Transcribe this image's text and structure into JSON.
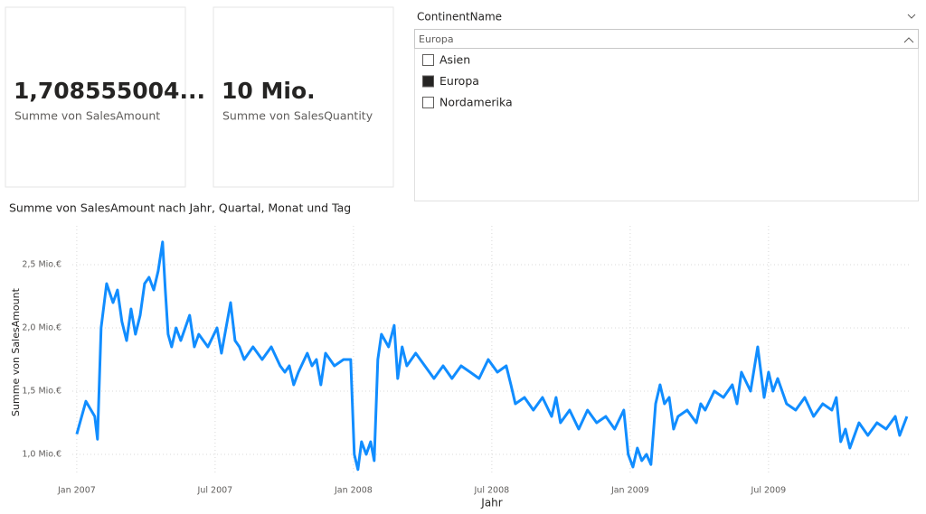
{
  "cards": [
    {
      "value": "1,708555004...",
      "label": "Summe von SalesAmount"
    },
    {
      "value": "10 Mio.",
      "label": "Summe von SalesQuantity"
    }
  ],
  "slicer": {
    "title": "ContinentName",
    "search": "Europa",
    "items": [
      {
        "label": "Asien",
        "checked": false
      },
      {
        "label": "Europa",
        "checked": true
      },
      {
        "label": "Nordamerika",
        "checked": false
      }
    ]
  },
  "chart_data": {
    "type": "line",
    "title": "Summe von SalesAmount nach Jahr, Quartal, Monat und Tag",
    "x_label": "Jahr",
    "y_label": "Summe von SalesAmount",
    "x": [
      2007.0,
      2007.033,
      2007.065,
      2007.075,
      2007.088,
      2007.108,
      2007.131,
      2007.147,
      2007.163,
      2007.18,
      2007.196,
      2007.212,
      2007.229,
      2007.245,
      2007.261,
      2007.278,
      2007.294,
      2007.31,
      2007.32,
      2007.33,
      2007.343,
      2007.359,
      2007.376,
      2007.408,
      2007.425,
      2007.441,
      2007.474,
      2007.507,
      2007.523,
      2007.556,
      2007.572,
      2007.588,
      2007.605,
      2007.637,
      2007.67,
      2007.703,
      2007.735,
      2007.752,
      2007.768,
      2007.784,
      2007.801,
      2007.833,
      2007.85,
      2007.866,
      2007.882,
      2007.899,
      2007.931,
      2007.964,
      2007.99,
      2008.003,
      2008.016,
      2008.029,
      2008.046,
      2008.062,
      2008.075,
      2008.088,
      2008.101,
      2008.127,
      2008.147,
      2008.16,
      2008.176,
      2008.193,
      2008.225,
      2008.258,
      2008.291,
      2008.324,
      2008.356,
      2008.389,
      2008.422,
      2008.454,
      2008.487,
      2008.52,
      2008.552,
      2008.569,
      2008.585,
      2008.618,
      2008.65,
      2008.683,
      2008.716,
      2008.732,
      2008.748,
      2008.781,
      2008.814,
      2008.846,
      2008.879,
      2008.912,
      2008.944,
      2008.977,
      2008.993,
      2009.01,
      2009.026,
      2009.042,
      2009.059,
      2009.075,
      2009.092,
      2009.108,
      2009.124,
      2009.141,
      2009.157,
      2009.173,
      2009.206,
      2009.239,
      2009.255,
      2009.271,
      2009.304,
      2009.337,
      2009.369,
      2009.386,
      2009.402,
      2009.435,
      2009.461,
      2009.484,
      2009.5,
      2009.516,
      2009.533,
      2009.565,
      2009.598,
      2009.631,
      2009.663,
      2009.696,
      2009.729,
      2009.745,
      2009.761,
      2009.778,
      2009.794,
      2009.827,
      2009.859,
      2009.892,
      2009.925,
      2009.958,
      2009.974,
      2010.0
    ],
    "series": [
      {
        "color": "#118dff",
        "values": [
          1160000,
          1420000,
          1300000,
          1120000,
          2000000,
          2350000,
          2200000,
          2300000,
          2050000,
          1900000,
          2150000,
          1950000,
          2100000,
          2350000,
          2400000,
          2300000,
          2450000,
          2680000,
          2300000,
          1950000,
          1850000,
          2000000,
          1900000,
          2100000,
          1850000,
          1950000,
          1850000,
          2000000,
          1800000,
          2200000,
          1900000,
          1850000,
          1750000,
          1850000,
          1750000,
          1850000,
          1700000,
          1650000,
          1700000,
          1550000,
          1650000,
          1800000,
          1700000,
          1750000,
          1550000,
          1800000,
          1700000,
          1750000,
          1750000,
          1000000,
          880000,
          1100000,
          1000000,
          1100000,
          950000,
          1750000,
          1950000,
          1850000,
          2020000,
          1600000,
          1850000,
          1700000,
          1800000,
          1700000,
          1600000,
          1700000,
          1600000,
          1700000,
          1650000,
          1600000,
          1750000,
          1650000,
          1700000,
          1550000,
          1400000,
          1450000,
          1350000,
          1450000,
          1300000,
          1450000,
          1250000,
          1350000,
          1200000,
          1350000,
          1250000,
          1300000,
          1200000,
          1350000,
          1000000,
          900000,
          1050000,
          950000,
          1000000,
          920000,
          1400000,
          1550000,
          1400000,
          1450000,
          1200000,
          1300000,
          1350000,
          1250000,
          1400000,
          1350000,
          1500000,
          1450000,
          1550000,
          1400000,
          1650000,
          1500000,
          1850000,
          1450000,
          1650000,
          1500000,
          1600000,
          1400000,
          1350000,
          1450000,
          1300000,
          1400000,
          1350000,
          1450000,
          1100000,
          1200000,
          1050000,
          1250000,
          1150000,
          1250000,
          1200000,
          1300000,
          1150000,
          1300000
        ]
      }
    ],
    "xlim": [
      2006.984,
      2010.007
    ],
    "xticks": [
      {
        "value": 2007,
        "label": "Jan 2007"
      },
      {
        "value": 2007.5,
        "label": "Jul 2007"
      },
      {
        "value": 2008,
        "label": "Jan 2008"
      },
      {
        "value": 2008.5,
        "label": "Jul 2008"
      },
      {
        "value": 2009,
        "label": "Jan 2009"
      },
      {
        "value": 2009.5,
        "label": "Jul 2009"
      }
    ],
    "ylim": [
      843000,
      2807000
    ],
    "yticks": [
      {
        "value": 1000000,
        "label": "1,0 Mio.€"
      },
      {
        "value": 1500000,
        "label": "1,5 Mio.€"
      },
      {
        "value": 2000000,
        "label": "2,0 Mio.€"
      },
      {
        "value": 2500000,
        "label": "2,5 Mio.€"
      }
    ],
    "grid": true
  }
}
